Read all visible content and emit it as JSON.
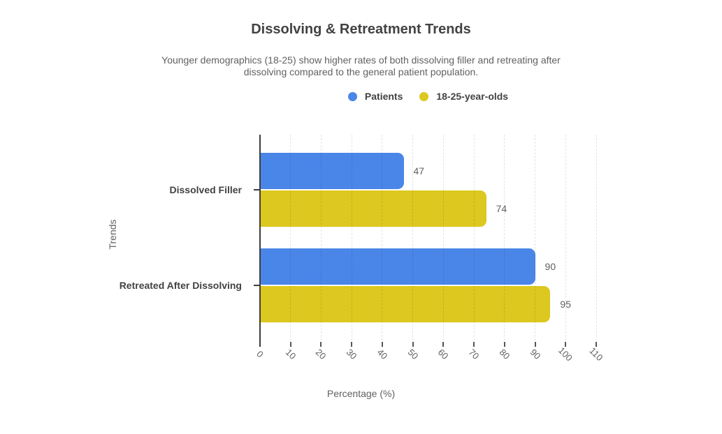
{
  "chart_data": {
    "type": "bar",
    "orientation": "horizontal",
    "title": "Dissolving & Retreatment Trends",
    "subtitle_lines": [
      "Younger demographics (18-25) show higher rates of both dissolving filler and retreating after",
      "dissolving compared to the general patient population."
    ],
    "categories": [
      "Dissolved Filler",
      "Retreated After Dissolving"
    ],
    "series": [
      {
        "name": "Patients",
        "color": "#4a86e8",
        "values": [
          47,
          90
        ]
      },
      {
        "name": "18-25-year-olds",
        "color": "#dcc81e",
        "values": [
          74,
          95
        ]
      }
    ],
    "xlabel": "Percentage (%)",
    "ylabel": "Trends",
    "xlim": [
      0,
      110
    ],
    "xticks": [
      0,
      10,
      20,
      30,
      40,
      50,
      60,
      70,
      80,
      90,
      100,
      110
    ],
    "grid": "dashed-vertical-gridlines",
    "legend_position": "top-center",
    "value_labels": true
  },
  "colors": {
    "background": "#ffffff",
    "axis_line": "#3d3d3d",
    "title_text": "#424242",
    "muted_text": "#616161",
    "series_blue": "#4a86e8",
    "series_yellow": "#dcc81e"
  }
}
